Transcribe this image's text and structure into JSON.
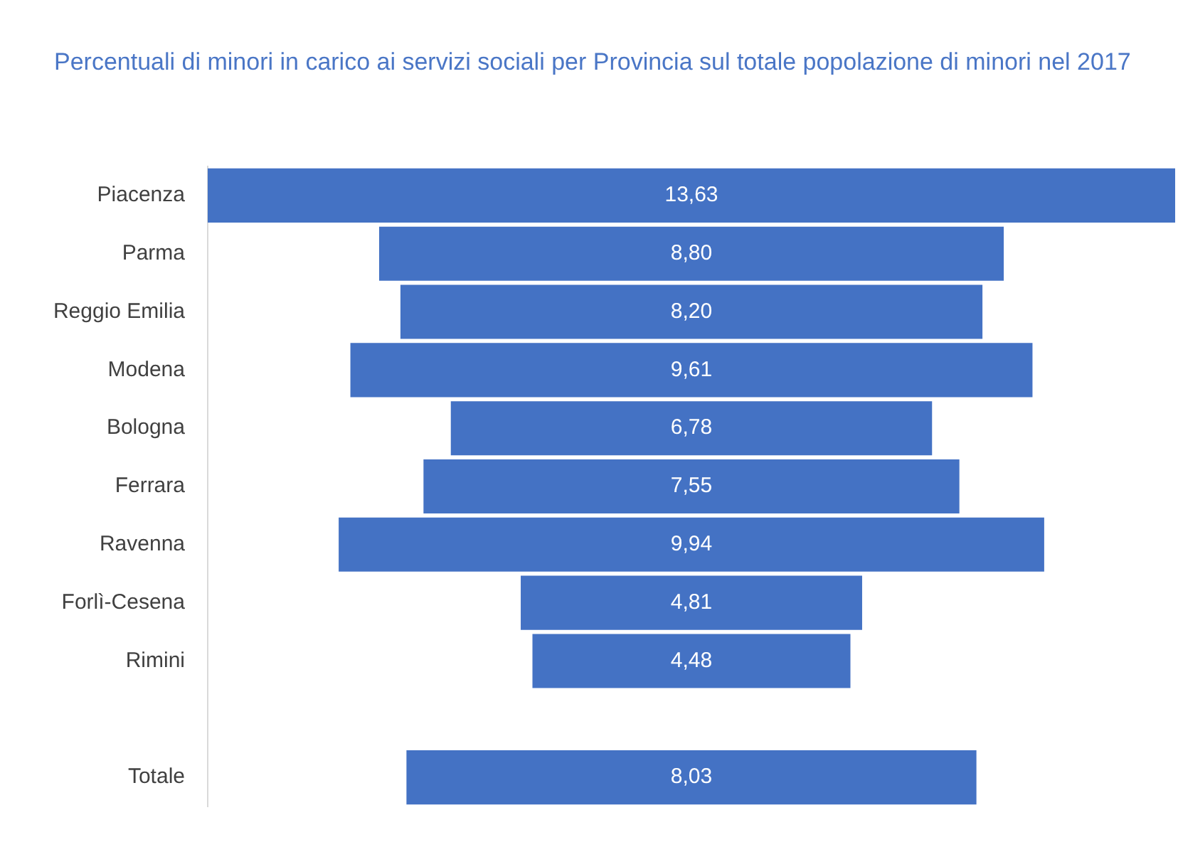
{
  "chart_data": {
    "type": "other",
    "title": "Percentuali di minori in carico ai servizi sociali per Provincia sul totale popolazione di minori nel 2017",
    "categories": [
      "Piacenza",
      "Parma",
      "Reggio Emilia",
      "Modena",
      "Bologna",
      "Ferrara",
      "Ravenna",
      "Forlì-Cesena",
      "Rimini",
      null,
      "Totale"
    ],
    "values": [
      13.63,
      8.8,
      8.2,
      9.61,
      6.78,
      7.55,
      9.94,
      4.81,
      4.48,
      null,
      8.03
    ],
    "value_labels": [
      "13,63",
      "8,80",
      "8,20",
      "9,61",
      "6,78",
      "7,55",
      "9,94",
      "4,81",
      "4,48",
      null,
      "8,03"
    ],
    "color": "#4472c4"
  }
}
